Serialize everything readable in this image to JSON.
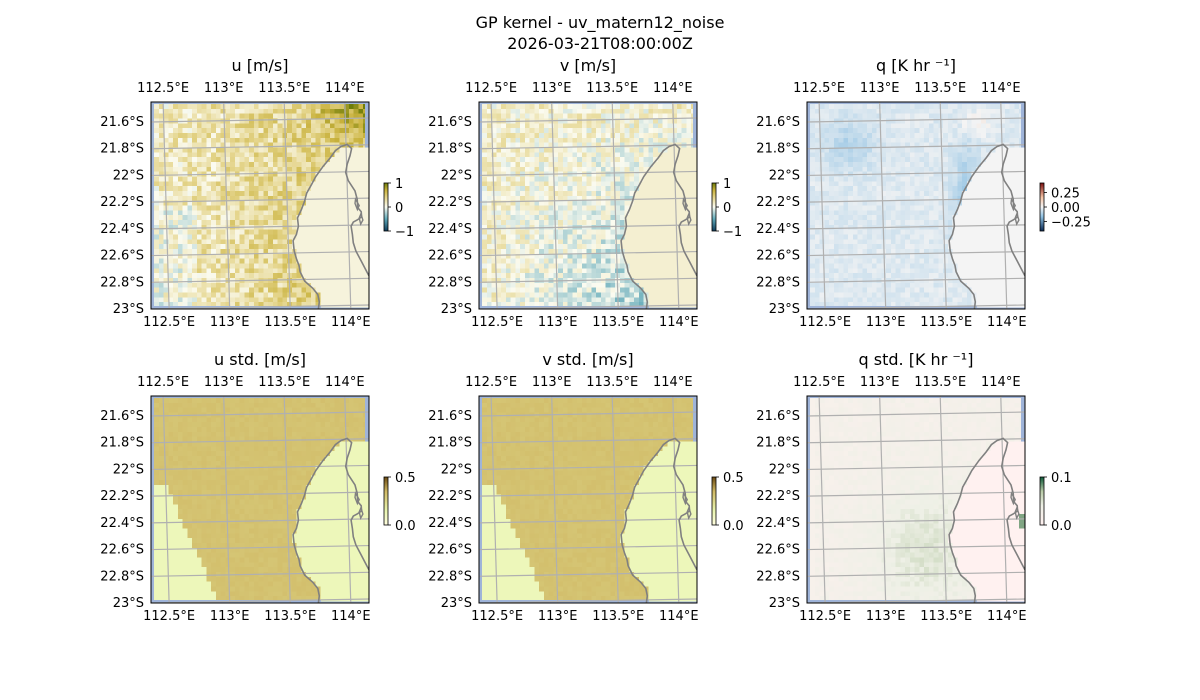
{
  "figure": {
    "title_line1": "GP kernel - uv_matern12_noise",
    "title_line2": "2026-03-21T08:00:00Z"
  },
  "colors": {
    "ocean": "#9fb4d9",
    "grid": "#b0b0b0",
    "coast": "#808080",
    "frame": "#000000"
  },
  "chart_data": [
    {
      "type": "heatmap",
      "title": "u [m/s]",
      "quantity": "u",
      "colormap": "brown-white-teal (diverging)",
      "clim": [
        -1,
        1
      ],
      "colorbar_ticks": [
        "1",
        "0",
        "−1"
      ],
      "lon_range": [
        112.4,
        114.2
      ],
      "lat_range": [
        -23.0,
        -21.45
      ],
      "lon_ticks": [
        "112.5°E",
        "113°E",
        "113.5°E",
        "114°E"
      ],
      "lat_ticks": [
        "21.6°S",
        "21.8°S",
        "22°S",
        "22.2°S",
        "22.4°S",
        "22.6°S",
        "22.8°S",
        "23°S"
      ],
      "grid": true
    },
    {
      "type": "heatmap",
      "title": "v [m/s]",
      "quantity": "v",
      "colormap": "brown-white-teal (diverging)",
      "clim": [
        -1,
        1
      ],
      "colorbar_ticks": [
        "1",
        "0",
        "−1"
      ],
      "lon_range": [
        112.4,
        114.2
      ],
      "lat_range": [
        -23.0,
        -21.45
      ],
      "lon_ticks": [
        "112.5°E",
        "113°E",
        "113.5°E",
        "114°E"
      ],
      "lat_ticks": [
        "21.6°S",
        "21.8°S",
        "22°S",
        "22.2°S",
        "22.4°S",
        "22.6°S",
        "22.8°S",
        "23°S"
      ],
      "grid": true
    },
    {
      "type": "heatmap",
      "title": "q [K hr ⁻¹]",
      "quantity": "q",
      "colormap": "red-white-blue (diverging)",
      "clim": [
        -0.35,
        0.35
      ],
      "colorbar_ticks": [
        "0.25",
        "0.00",
        "−0.25"
      ],
      "lon_range": [
        112.4,
        114.2
      ],
      "lat_range": [
        -23.0,
        -21.45
      ],
      "lon_ticks": [
        "112.5°E",
        "113°E",
        "113.5°E",
        "114°E"
      ],
      "lat_ticks": [
        "21.6°S",
        "21.8°S",
        "22°S",
        "22.2°S",
        "22.4°S",
        "22.6°S",
        "22.8°S",
        "23°S"
      ],
      "grid": true
    },
    {
      "type": "heatmap",
      "title": "u std. [m/s]",
      "quantity": "u_std",
      "colormap": "sequential brown",
      "clim": [
        0.0,
        0.5
      ],
      "colorbar_ticks": [
        "0.5",
        "0.0"
      ],
      "lon_range": [
        112.4,
        114.2
      ],
      "lat_range": [
        -23.0,
        -21.45
      ],
      "lon_ticks": [
        "112.5°E",
        "113°E",
        "113.5°E",
        "114°E"
      ],
      "lat_ticks": [
        "21.6°S",
        "21.8°S",
        "22°S",
        "22.2°S",
        "22.4°S",
        "22.6°S",
        "22.8°S",
        "23°S"
      ],
      "grid": true
    },
    {
      "type": "heatmap",
      "title": "v std. [m/s]",
      "quantity": "v_std",
      "colormap": "sequential brown",
      "clim": [
        0.0,
        0.5
      ],
      "colorbar_ticks": [
        "0.5",
        "0.0"
      ],
      "lon_range": [
        112.4,
        114.2
      ],
      "lat_range": [
        -23.0,
        -21.45
      ],
      "lon_ticks": [
        "112.5°E",
        "113°E",
        "113.5°E",
        "114°E"
      ],
      "lat_ticks": [
        "21.6°S",
        "21.8°S",
        "22°S",
        "22.2°S",
        "22.4°S",
        "22.6°S",
        "22.8°S",
        "23°S"
      ],
      "grid": true
    },
    {
      "type": "heatmap",
      "title": "q std. [K hr ⁻¹]",
      "quantity": "q_std",
      "colormap": "sequential pink-green",
      "clim": [
        0.0,
        0.1
      ],
      "colorbar_ticks": [
        "0.1",
        "0.0"
      ],
      "lon_range": [
        112.4,
        114.2
      ],
      "lat_range": [
        -23.0,
        -21.45
      ],
      "lon_ticks": [
        "112.5°E",
        "113°E",
        "113.5°E",
        "114°E"
      ],
      "lat_ticks": [
        "21.6°S",
        "21.8°S",
        "22°S",
        "22.2°S",
        "22.4°S",
        "22.6°S",
        "22.8°S",
        "23°S"
      ],
      "grid": true
    }
  ]
}
